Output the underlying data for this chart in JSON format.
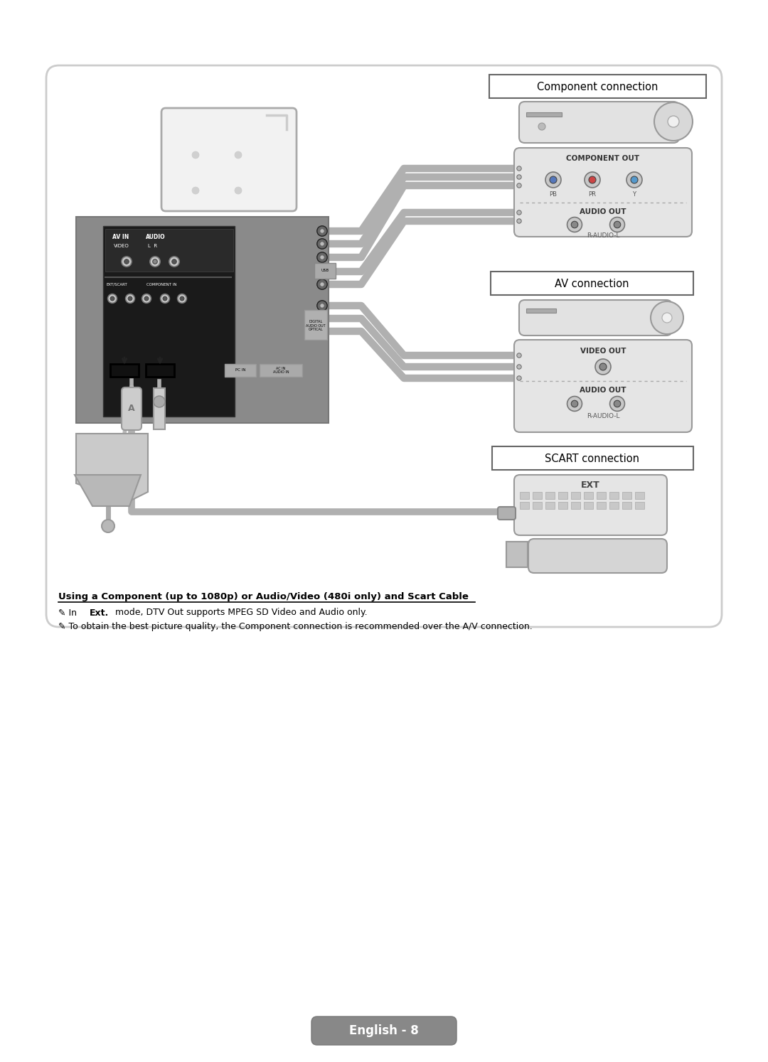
{
  "bg_color": "#ffffff",
  "border_color": "#cccccc",
  "card_gray": "#e8e8e8",
  "tv_bg": "#898989",
  "title_comp": "Component connection",
  "title_av": "AV connection",
  "title_scart": "SCART connection",
  "comp_out": "COMPONENT OUT",
  "audio_out": "AUDIO OUT",
  "r_audio_l": "R-AUDIO-L",
  "video_out": "VIDEO OUT",
  "ext_label": "EXT",
  "pb": "PB",
  "pr": "PR",
  "y_lbl": "Y",
  "heading": "Using a Component (up to 1080p) or Audio/Video (480i only) and Scart Cable",
  "note1_pre": "In ",
  "note1_bold": "Ext.",
  "note1_post": " mode, DTV Out supports MPEG SD Video and Audio only.",
  "note2": "To obtain the best picture quality, the Component connection is recommended over the A/V connection.",
  "page_label": "English - 8",
  "fig_width": 10.8,
  "fig_height": 14.94
}
